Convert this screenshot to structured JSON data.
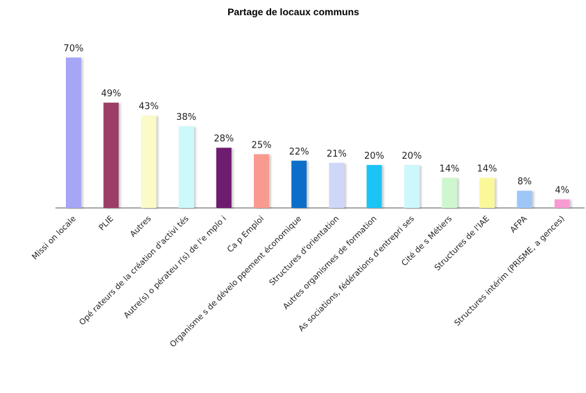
{
  "chart_data": {
    "type": "bar",
    "title": "Partage de locaux communs",
    "xlabel": "",
    "ylabel": "",
    "ylim": [
      0,
      70
    ],
    "grid": false,
    "legend": "none",
    "categories": [
      "Missi on locale",
      "PLIE",
      "Autres",
      "Opé rateurs de la création d'activi tés",
      "Autre(s) o pérateu r(s) de l'e mplo i",
      "Ca p Emploi",
      "Organisme s de dévelo ppement économique",
      "Structures d'orientation",
      "Autres organismes de formation",
      "As sociations, fédérations d'entrepri ses",
      "Cité de s Métiers",
      "Structures de l'IAE",
      "AFPA",
      "Structures intérim (PRISME, a gences)"
    ],
    "values": [
      70,
      49,
      43,
      38,
      28,
      25,
      22,
      21,
      20,
      20,
      14,
      14,
      8,
      4
    ],
    "value_labels": [
      "70%",
      "49%",
      "43%",
      "38%",
      "28%",
      "25%",
      "22%",
      "21%",
      "20%",
      "20%",
      "14%",
      "14%",
      "8%",
      "4%"
    ],
    "colors": [
      "#a6a6f7",
      "#9c3c68",
      "#fbfbc8",
      "#ccf9fb",
      "#6e1a70",
      "#f99a8f",
      "#0d6ec9",
      "#cfd7f9",
      "#1ec4f6",
      "#cdf8fb",
      "#cff7cf",
      "#fbf89a",
      "#9ec7f7",
      "#f79bd2"
    ]
  }
}
